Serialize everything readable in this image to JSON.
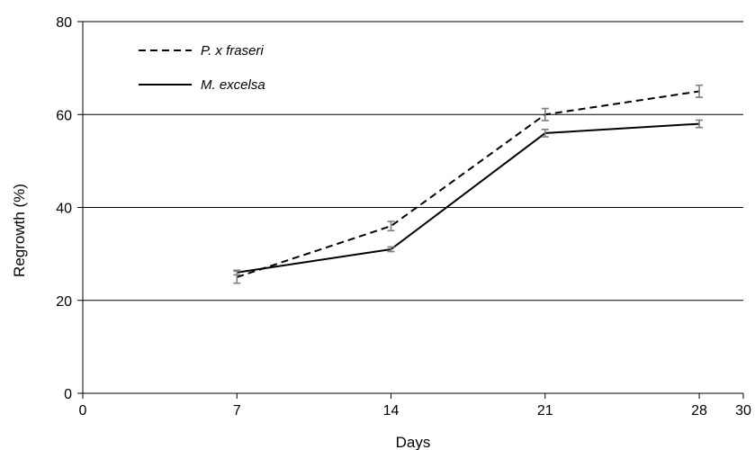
{
  "chart_data": {
    "type": "line",
    "title": "",
    "xlabel": "Days",
    "ylabel": "Regrowth (%)",
    "xlim": [
      0,
      30
    ],
    "ylim": [
      0,
      80
    ],
    "x_ticks": [
      0,
      7,
      14,
      21,
      28,
      30
    ],
    "y_ticks": [
      0,
      20,
      40,
      60,
      80
    ],
    "grid": "horizontal",
    "legend_position": "top-left",
    "x": [
      7,
      14,
      21,
      28
    ],
    "series": [
      {
        "name_prefix": "P. x ",
        "name_suffix": "fraseri",
        "name": "P. x fraseri",
        "style": "dashed",
        "color": "#000000",
        "values": [
          25,
          36,
          60,
          65
        ],
        "errors": [
          1.3,
          1.0,
          1.3,
          1.3
        ]
      },
      {
        "name": "M. excelsa",
        "style": "solid",
        "color": "#000000",
        "values": [
          26,
          31,
          56,
          58
        ],
        "errors": [
          0.5,
          0.5,
          0.8,
          0.8
        ]
      }
    ],
    "error_bar_color": "#7f7f7f",
    "gridline_color": "#000000"
  }
}
